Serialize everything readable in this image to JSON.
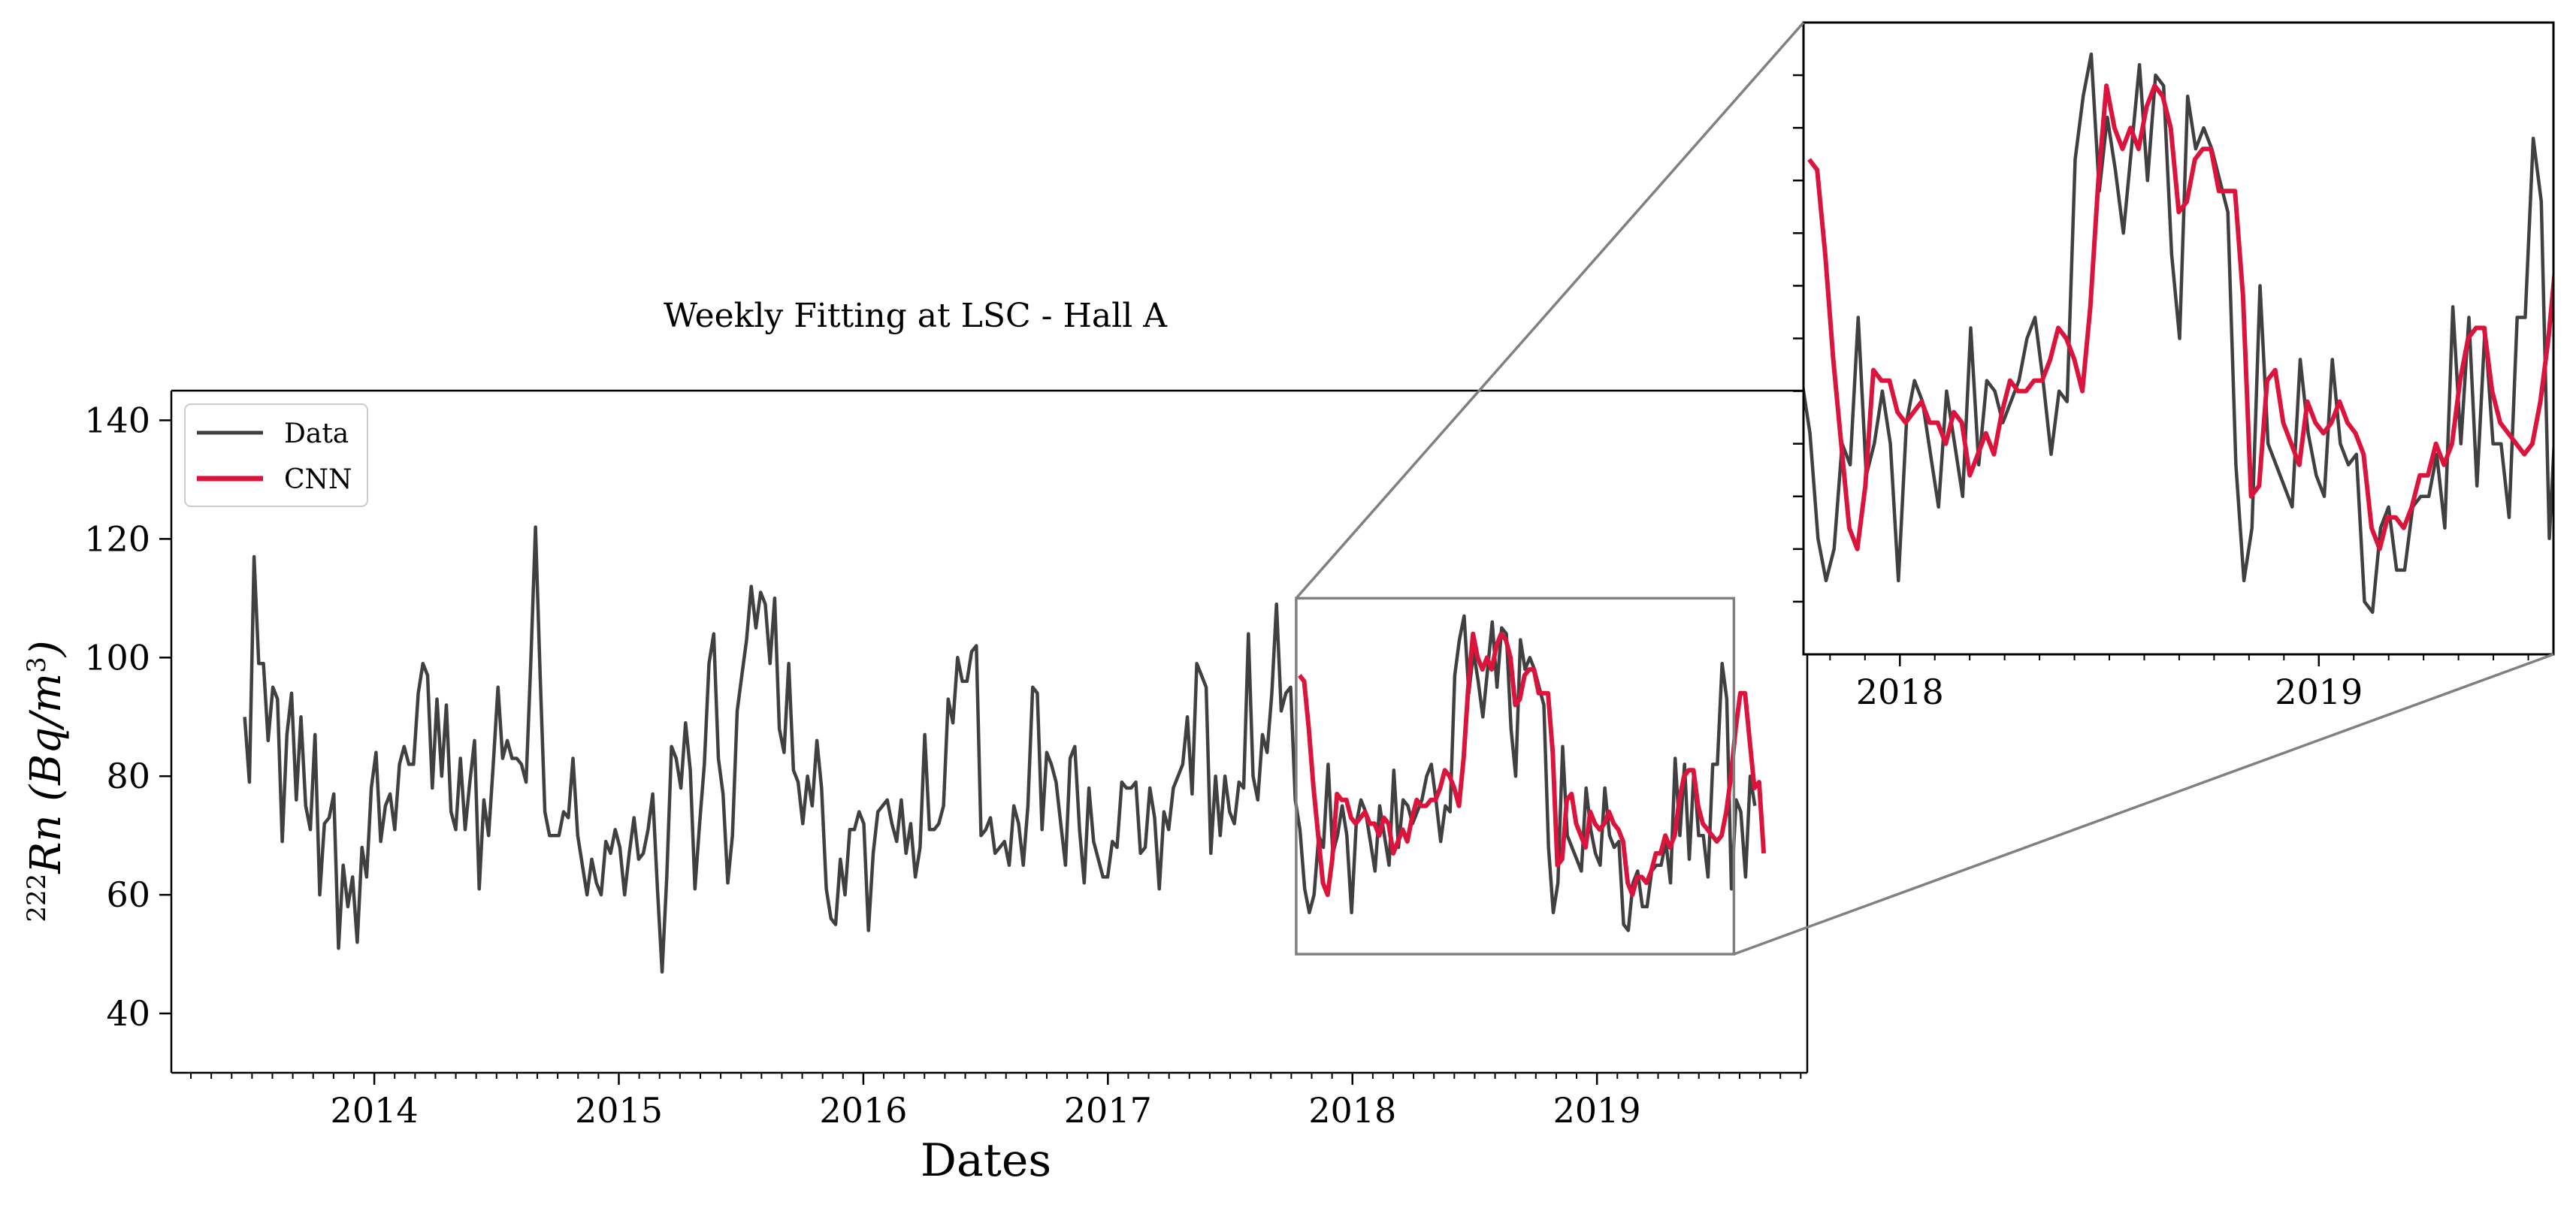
{
  "chart_data": {
    "type": "line",
    "title": "Weekly Fitting at LSC - Hall A",
    "xlabel": "Dates",
    "ylabel": {
      "superscript": "222",
      "main": "Rn (Bq/m",
      "sup2": "3",
      "close": ")"
    },
    "ylim": [
      30,
      145
    ],
    "yticks": [
      40,
      60,
      80,
      100,
      120,
      140
    ],
    "xlim": [
      2013.17,
      2019.86
    ],
    "xticks": [
      {
        "v": 2014.0,
        "label": "2014"
      },
      {
        "v": 2015.0,
        "label": "2015"
      },
      {
        "v": 2016.0,
        "label": "2016"
      },
      {
        "v": 2017.0,
        "label": "2017"
      },
      {
        "v": 2018.0,
        "label": "2018"
      },
      {
        "v": 2019.0,
        "label": "2019"
      }
    ],
    "legend": {
      "position": "top-left",
      "entries": [
        "Data",
        "CNN"
      ]
    },
    "colors": {
      "Data": "#404040",
      "CNN": "#dc143c",
      "zoom": "#808080"
    },
    "series": [
      {
        "name": "Data",
        "color": "#404040",
        "x_start": 2013.47,
        "x_step": 0.01918,
        "values": [
          90,
          79,
          117,
          99,
          99,
          86,
          95,
          93,
          69,
          87,
          94,
          76,
          90,
          75,
          71,
          87,
          60,
          72,
          73,
          77,
          51,
          65,
          58,
          63,
          52,
          68,
          63,
          78,
          84,
          69,
          75,
          77,
          71,
          82,
          85,
          82,
          82,
          94,
          99,
          97,
          78,
          93,
          80,
          92,
          74,
          71,
          83,
          71,
          79,
          86,
          61,
          76,
          70,
          82,
          95,
          83,
          86,
          83,
          83,
          82,
          79,
          99,
          122,
          97,
          74,
          70,
          70,
          70,
          74,
          73,
          83,
          70,
          65,
          60,
          66,
          62,
          60,
          69,
          67,
          71,
          68,
          60,
          67,
          73,
          66,
          67,
          71,
          77,
          61,
          47,
          63,
          85,
          83,
          78,
          89,
          81,
          61,
          72,
          82,
          99,
          104,
          83,
          77,
          62,
          70,
          91,
          97,
          103,
          112,
          105,
          111,
          109,
          99,
          110,
          88,
          84,
          99,
          81,
          79,
          72,
          80,
          75,
          86,
          78,
          61,
          56,
          55,
          66,
          60,
          71,
          71,
          74,
          72,
          54,
          67,
          74,
          75,
          76,
          72,
          69,
          76,
          67,
          72,
          63,
          68,
          87,
          71,
          71,
          72,
          75,
          93,
          89,
          100,
          96,
          96,
          101,
          102,
          70,
          71,
          73,
          67,
          68,
          69,
          65,
          75,
          72,
          65,
          75,
          95,
          94,
          71,
          84,
          82,
          79,
          72,
          65,
          83,
          85,
          71,
          62,
          78,
          69,
          66,
          63,
          63,
          69,
          68,
          79,
          78,
          78,
          79,
          67,
          68,
          78,
          73,
          61,
          74,
          71,
          78,
          80,
          82,
          90,
          77,
          99,
          97,
          95,
          67,
          80,
          70,
          80,
          74,
          72,
          79,
          78,
          104,
          80,
          76,
          87,
          84,
          94,
          109,
          91,
          94,
          95,
          76,
          71,
          61,
          57,
          60,
          70,
          68,
          82,
          67,
          70,
          75,
          70,
          57,
          72,
          76,
          74,
          69,
          64,
          75,
          70,
          65,
          81,
          68,
          76,
          75,
          72,
          74,
          76,
          80,
          82,
          76,
          69,
          75,
          74,
          97,
          103,
          107,
          94,
          101,
          96,
          90,
          98,
          106,
          95,
          105,
          104,
          88,
          80,
          103,
          98,
          100,
          98,
          95,
          92,
          68,
          57,
          62,
          85,
          70,
          68,
          66,
          64,
          78,
          71,
          67,
          65,
          78,
          70,
          68,
          69,
          55,
          54,
          62,
          64,
          58,
          58,
          64,
          65,
          65,
          69,
          62,
          83,
          70,
          82,
          66,
          81,
          70,
          70,
          63,
          82,
          82,
          99,
          93,
          61,
          76,
          74,
          63,
          80,
          75
        ]
      },
      {
        "name": "CNN",
        "color": "#dc143c",
        "x_start": 2017.7834,
        "x_step": 0.01918,
        "values": [
          97,
          96,
          88,
          78,
          70,
          62,
          60,
          66,
          77,
          76,
          76,
          73,
          72,
          73,
          74,
          72,
          72,
          70,
          73,
          72,
          67,
          69,
          71,
          69,
          73,
          76,
          75,
          75,
          76,
          76,
          78,
          81,
          80,
          78,
          75,
          83,
          95,
          104,
          100,
          98,
          100,
          98,
          102,
          104,
          103,
          100,
          92,
          93,
          97,
          98,
          98,
          94,
          94,
          94,
          84,
          65,
          66,
          76,
          77,
          72,
          70,
          68,
          74,
          72,
          71,
          72,
          74,
          72,
          71,
          69,
          62,
          60,
          63,
          63,
          62,
          64,
          67,
          67,
          70,
          68,
          70,
          76,
          80,
          81,
          81,
          75,
          72,
          71,
          70,
          69,
          70,
          74,
          80,
          88,
          94,
          94,
          86,
          78,
          79,
          67
        ]
      }
    ],
    "zoom_inset": {
      "xlim": [
        2017.77,
        2019.56
      ],
      "ylim": [
        50,
        110
      ],
      "xticks": [
        {
          "v": 2018.0,
          "label": "2018"
        },
        {
          "v": 2019.0,
          "label": "2019"
        }
      ],
      "ytick_values": [
        55,
        60,
        65,
        70,
        75,
        80,
        85,
        90,
        95,
        100,
        105
      ]
    }
  }
}
